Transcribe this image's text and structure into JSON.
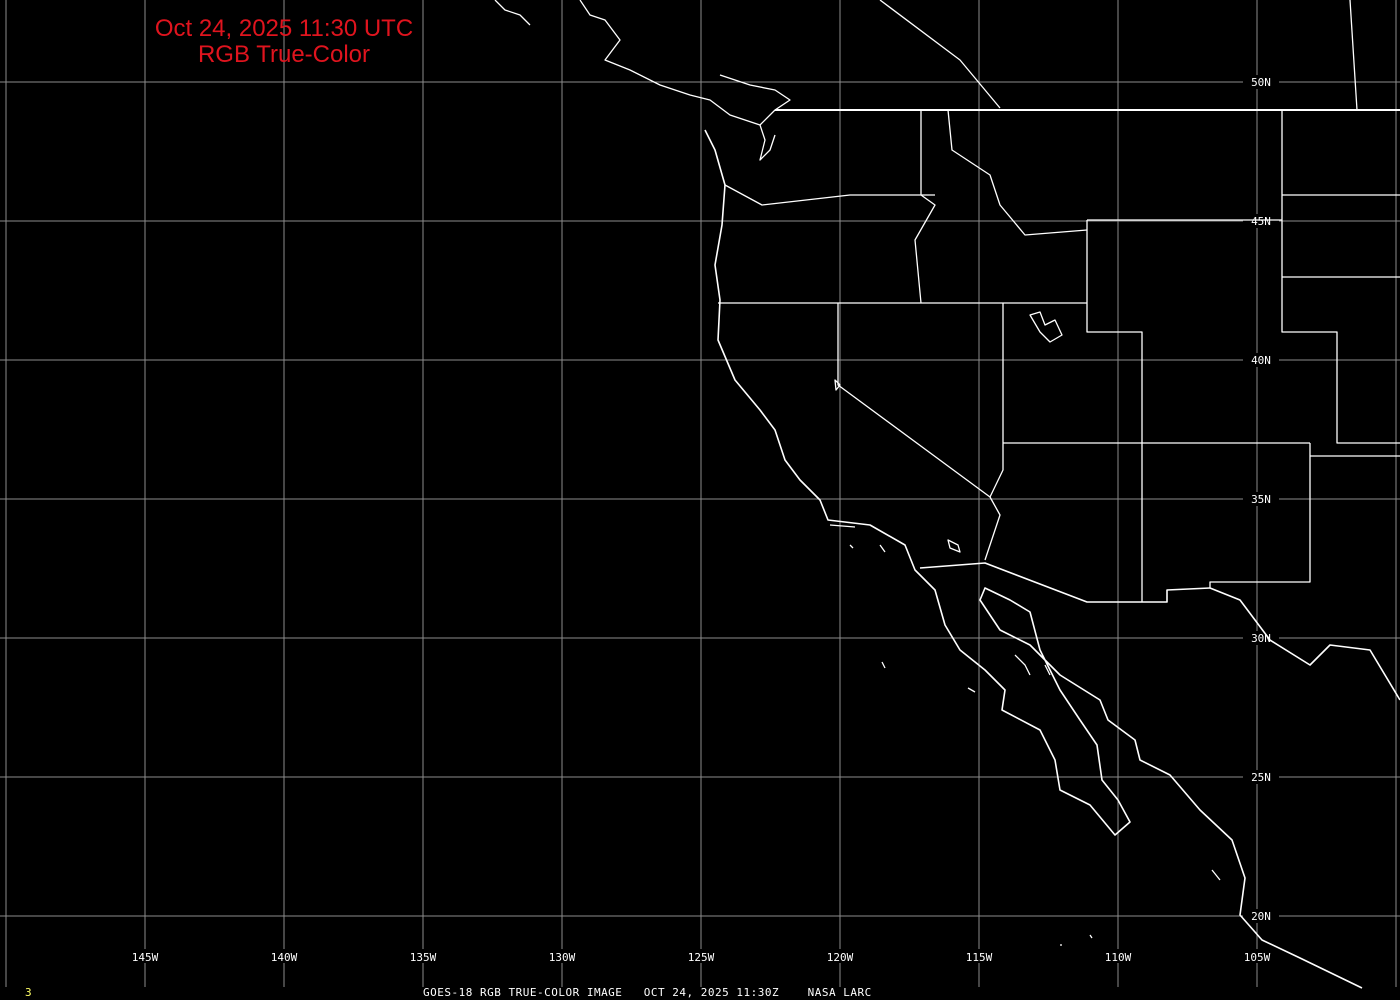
{
  "title": {
    "line1": "Oct 24, 2025 11:30 UTC",
    "line2": "RGB True-Color"
  },
  "footer": {
    "frame": "3",
    "caption": "GOES-18 RGB TRUE-COLOR IMAGE   OCT 24, 2025 11:30Z    NASA LARC"
  },
  "grid": {
    "latitudes": [
      {
        "value": 50,
        "label": "50N"
      },
      {
        "value": 45,
        "label": "45N"
      },
      {
        "value": 40,
        "label": "40N"
      },
      {
        "value": 35,
        "label": "35N"
      },
      {
        "value": 30,
        "label": "30N"
      },
      {
        "value": 25,
        "label": "25N"
      },
      {
        "value": 20,
        "label": "20N"
      }
    ],
    "longitudes": [
      {
        "value": -150,
        "label": ""
      },
      {
        "value": -145,
        "label": "145W"
      },
      {
        "value": -140,
        "label": "140W"
      },
      {
        "value": -135,
        "label": "135W"
      },
      {
        "value": -130,
        "label": "130W"
      },
      {
        "value": -125,
        "label": "125W"
      },
      {
        "value": -120,
        "label": "120W"
      },
      {
        "value": -115,
        "label": "115W"
      },
      {
        "value": -110,
        "label": "110W"
      },
      {
        "value": -105,
        "label": "105W"
      },
      {
        "value": -100,
        "label": ""
      }
    ]
  },
  "colors": {
    "background": "#000000",
    "grid": "#8c8c8c",
    "coast": "#ffffff",
    "title": "#e0141e",
    "frame": "#ffff66"
  }
}
